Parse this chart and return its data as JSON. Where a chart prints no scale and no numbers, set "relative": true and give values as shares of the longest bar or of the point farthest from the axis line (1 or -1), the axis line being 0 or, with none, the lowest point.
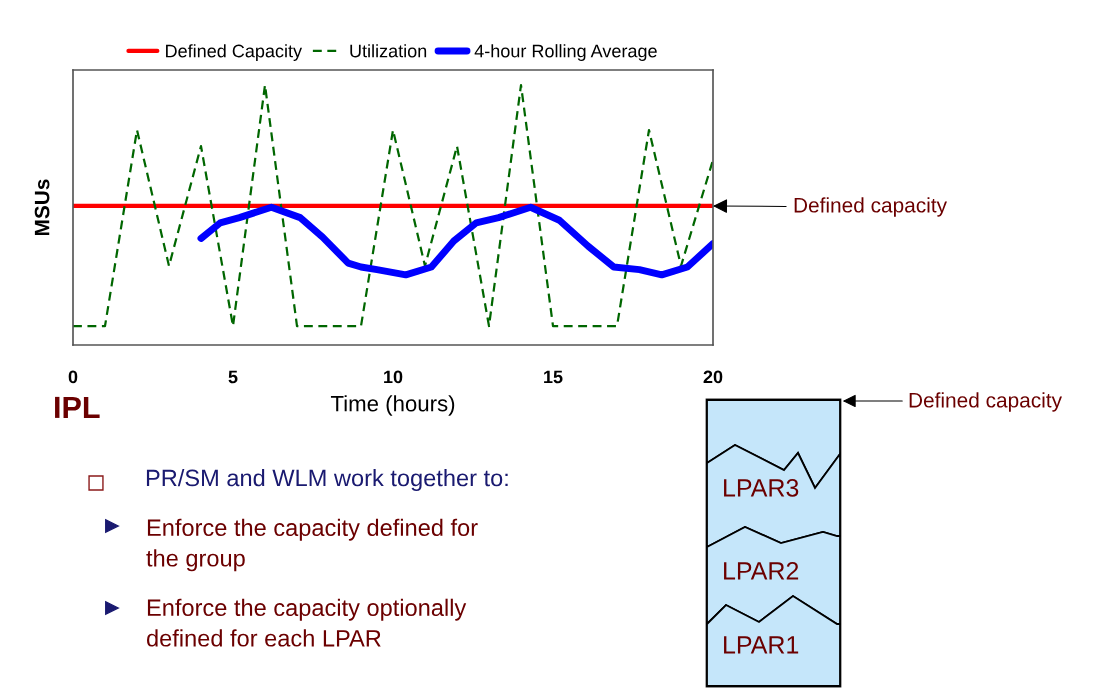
{
  "chart_data": {
    "type": "line",
    "relative": true,
    "xlabel": "Time (hours)",
    "ylabel": "MSUs",
    "xlim": [
      0,
      20
    ],
    "xticks": [
      0,
      5,
      10,
      15,
      20
    ],
    "tick_labels": "x",
    "grid": false,
    "legend": "top",
    "series": [
      {
        "name": "Defined Capacity",
        "color": "#ff0000",
        "line_style": "solid",
        "x": [
          0,
          20
        ],
        "values": [
          0.535,
          0.535
        ]
      },
      {
        "name": "Utilization",
        "color": "#006600",
        "line_style": "dashed",
        "x": [
          0,
          1,
          2,
          3,
          4,
          5,
          6,
          7,
          9,
          10,
          11,
          12,
          13,
          14,
          15,
          17,
          18,
          19,
          20
        ],
        "values": [
          0.073,
          0.073,
          0.827,
          0.304,
          0.765,
          0.073,
          1,
          0.073,
          0.073,
          0.827,
          0.304,
          0.765,
          0.073,
          1,
          0.073,
          0.073,
          0.827,
          0.304,
          0.712
        ]
      },
      {
        "name": "4-hour Rolling Average",
        "color": "#0000ff",
        "line_style": "solid",
        "x": [
          4.0,
          4.6,
          5.2,
          6.2,
          7.1,
          7.8,
          8.6,
          9.0,
          9.5,
          10.4,
          11.2,
          11.9,
          12.6,
          13.3,
          14.3,
          15.2,
          16.1,
          16.9,
          17.7,
          18.4,
          19.2,
          20
        ],
        "values": [
          0.41,
          0.47,
          0.49,
          0.53,
          0.49,
          0.415,
          0.315,
          0.3,
          0.29,
          0.27,
          0.3,
          0.4,
          0.47,
          0.49,
          0.53,
          0.48,
          0.38,
          0.3,
          0.29,
          0.27,
          0.3,
          0.39
        ]
      }
    ],
    "annotations": [
      "IPL",
      {
        "text": "Defined capacity",
        "x": 20,
        "y": 0.535
      },
      "PR/SM and WLM work together to:",
      "Enforce the capacity defined for the group",
      "Enforce the capacity optionally defined for each LPAR",
      "Defined capacity",
      "LPAR3",
      "LPAR2",
      "LPAR1"
    ]
  }
}
